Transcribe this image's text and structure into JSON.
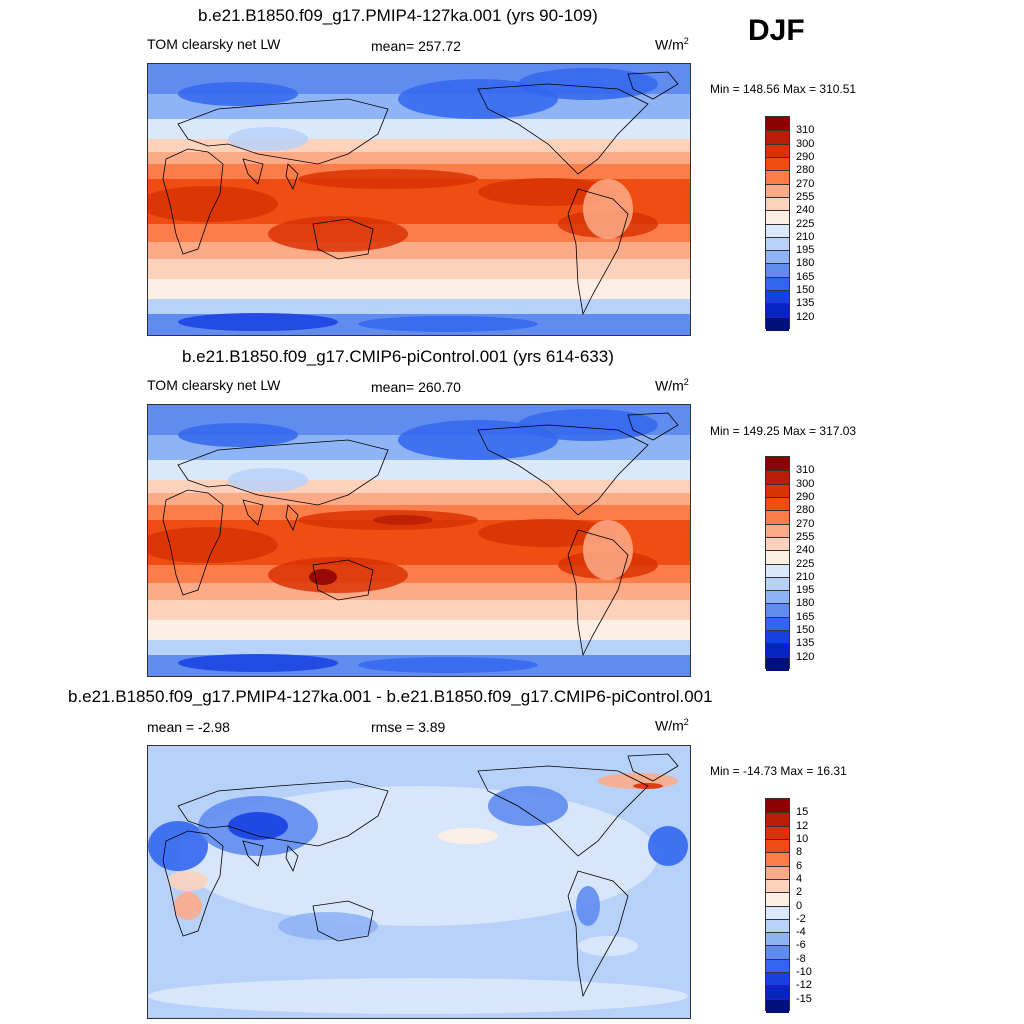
{
  "season": "DJF",
  "panels": [
    {
      "title": "b.e21.B1850.f09_g17.PMIP4-127ka.001 (yrs 90-109)",
      "left_label": "TOM clearsky net LW",
      "center_label": "mean= 257.72",
      "units": "W/m",
      "units_sup": "2",
      "minmax": "Min = 148.56 Max = 310.51",
      "colorbar": {
        "labels": [
          "310",
          "300",
          "290",
          "280",
          "270",
          "255",
          "240",
          "225",
          "210",
          "195",
          "180",
          "165",
          "150",
          "135",
          "120"
        ],
        "colors": [
          "#8b0000",
          "#b81d05",
          "#d93305",
          "#f04d12",
          "#fa7d4a",
          "#fcab88",
          "#fdd2bd",
          "#fdefe3",
          "#dae8fb",
          "#b8d1f9",
          "#8fb4f5",
          "#5f8cee",
          "#3366ee",
          "#1740e0",
          "#0524c2",
          "#00107a"
        ]
      },
      "field": "lw"
    },
    {
      "title": "b.e21.B1850.f09_g17.CMIP6-piControl.001 (yrs 614-633)",
      "left_label": "TOM clearsky net LW",
      "center_label": "mean= 260.70",
      "units": "W/m",
      "units_sup": "2",
      "minmax": "Min = 149.25 Max = 317.03",
      "colorbar": {
        "labels": [
          "310",
          "300",
          "290",
          "280",
          "270",
          "255",
          "240",
          "225",
          "210",
          "195",
          "180",
          "165",
          "150",
          "135",
          "120"
        ],
        "colors": [
          "#8b0000",
          "#b81d05",
          "#d93305",
          "#f04d12",
          "#fa7d4a",
          "#fcab88",
          "#fdd2bd",
          "#fdefe3",
          "#dae8fb",
          "#b8d1f9",
          "#8fb4f5",
          "#5f8cee",
          "#3366ee",
          "#1740e0",
          "#0524c2",
          "#00107a"
        ]
      },
      "field": "lw"
    },
    {
      "title": "b.e21.B1850.f09_g17.PMIP4-127ka.001 - b.e21.B1850.f09_g17.CMIP6-piControl.001",
      "left_label": "mean =  -2.98",
      "center_label": "rmse =   3.89",
      "units": "W/m",
      "units_sup": "2",
      "minmax": "Min = -14.73 Max =  16.31",
      "colorbar": {
        "labels": [
          "15",
          "12",
          "10",
          "8",
          "6",
          "4",
          "2",
          "0",
          "-2",
          "-4",
          "-6",
          "-8",
          "-10",
          "-12",
          "-15"
        ],
        "colors": [
          "#8b0000",
          "#b81d05",
          "#d93305",
          "#f04d12",
          "#fa7d4a",
          "#fcab88",
          "#fdd2bd",
          "#fdefe3",
          "#dae8fb",
          "#b8d1f9",
          "#8fb4f5",
          "#5f8cee",
          "#3366ee",
          "#1740e0",
          "#0524c2",
          "#00107a"
        ]
      },
      "field": "diff"
    }
  ]
}
